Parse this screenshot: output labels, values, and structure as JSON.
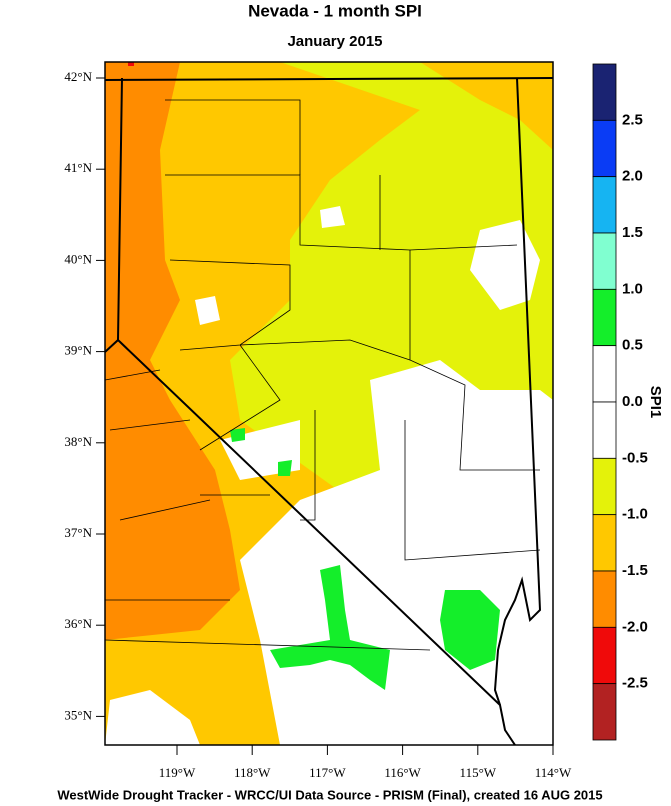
{
  "header": {
    "title": "Nevada - 1 month SPI",
    "subtitle": "January 2015"
  },
  "map": {
    "lat_labels": [
      "42°N",
      "41°N",
      "40°N",
      "39°N",
      "38°N",
      "37°N",
      "36°N",
      "35°N"
    ],
    "lon_labels": [
      "119°W",
      "118°W",
      "117°W",
      "116°W",
      "115°W",
      "114°W"
    ]
  },
  "legend": {
    "title": "SPI1",
    "labels": [
      "2.5",
      "2.0",
      "1.5",
      "1.0",
      "0.5",
      "0.0",
      "-0.5",
      "-1.0",
      "-1.5",
      "-2.0",
      "-2.5"
    ],
    "colors": [
      "#1a2372",
      "#0a3cf5",
      "#16b4f2",
      "#80ffd0",
      "#14ee2a",
      "#ffffff",
      "#ffffff",
      "#e4f20a",
      "#ffc800",
      "#ff8c00",
      "#f00a0a",
      "#b22222"
    ]
  },
  "footer": "WestWide Drought Tracker - WRCC/UI  Data Source - PRISM (Final), created 16 AUG 2015"
}
